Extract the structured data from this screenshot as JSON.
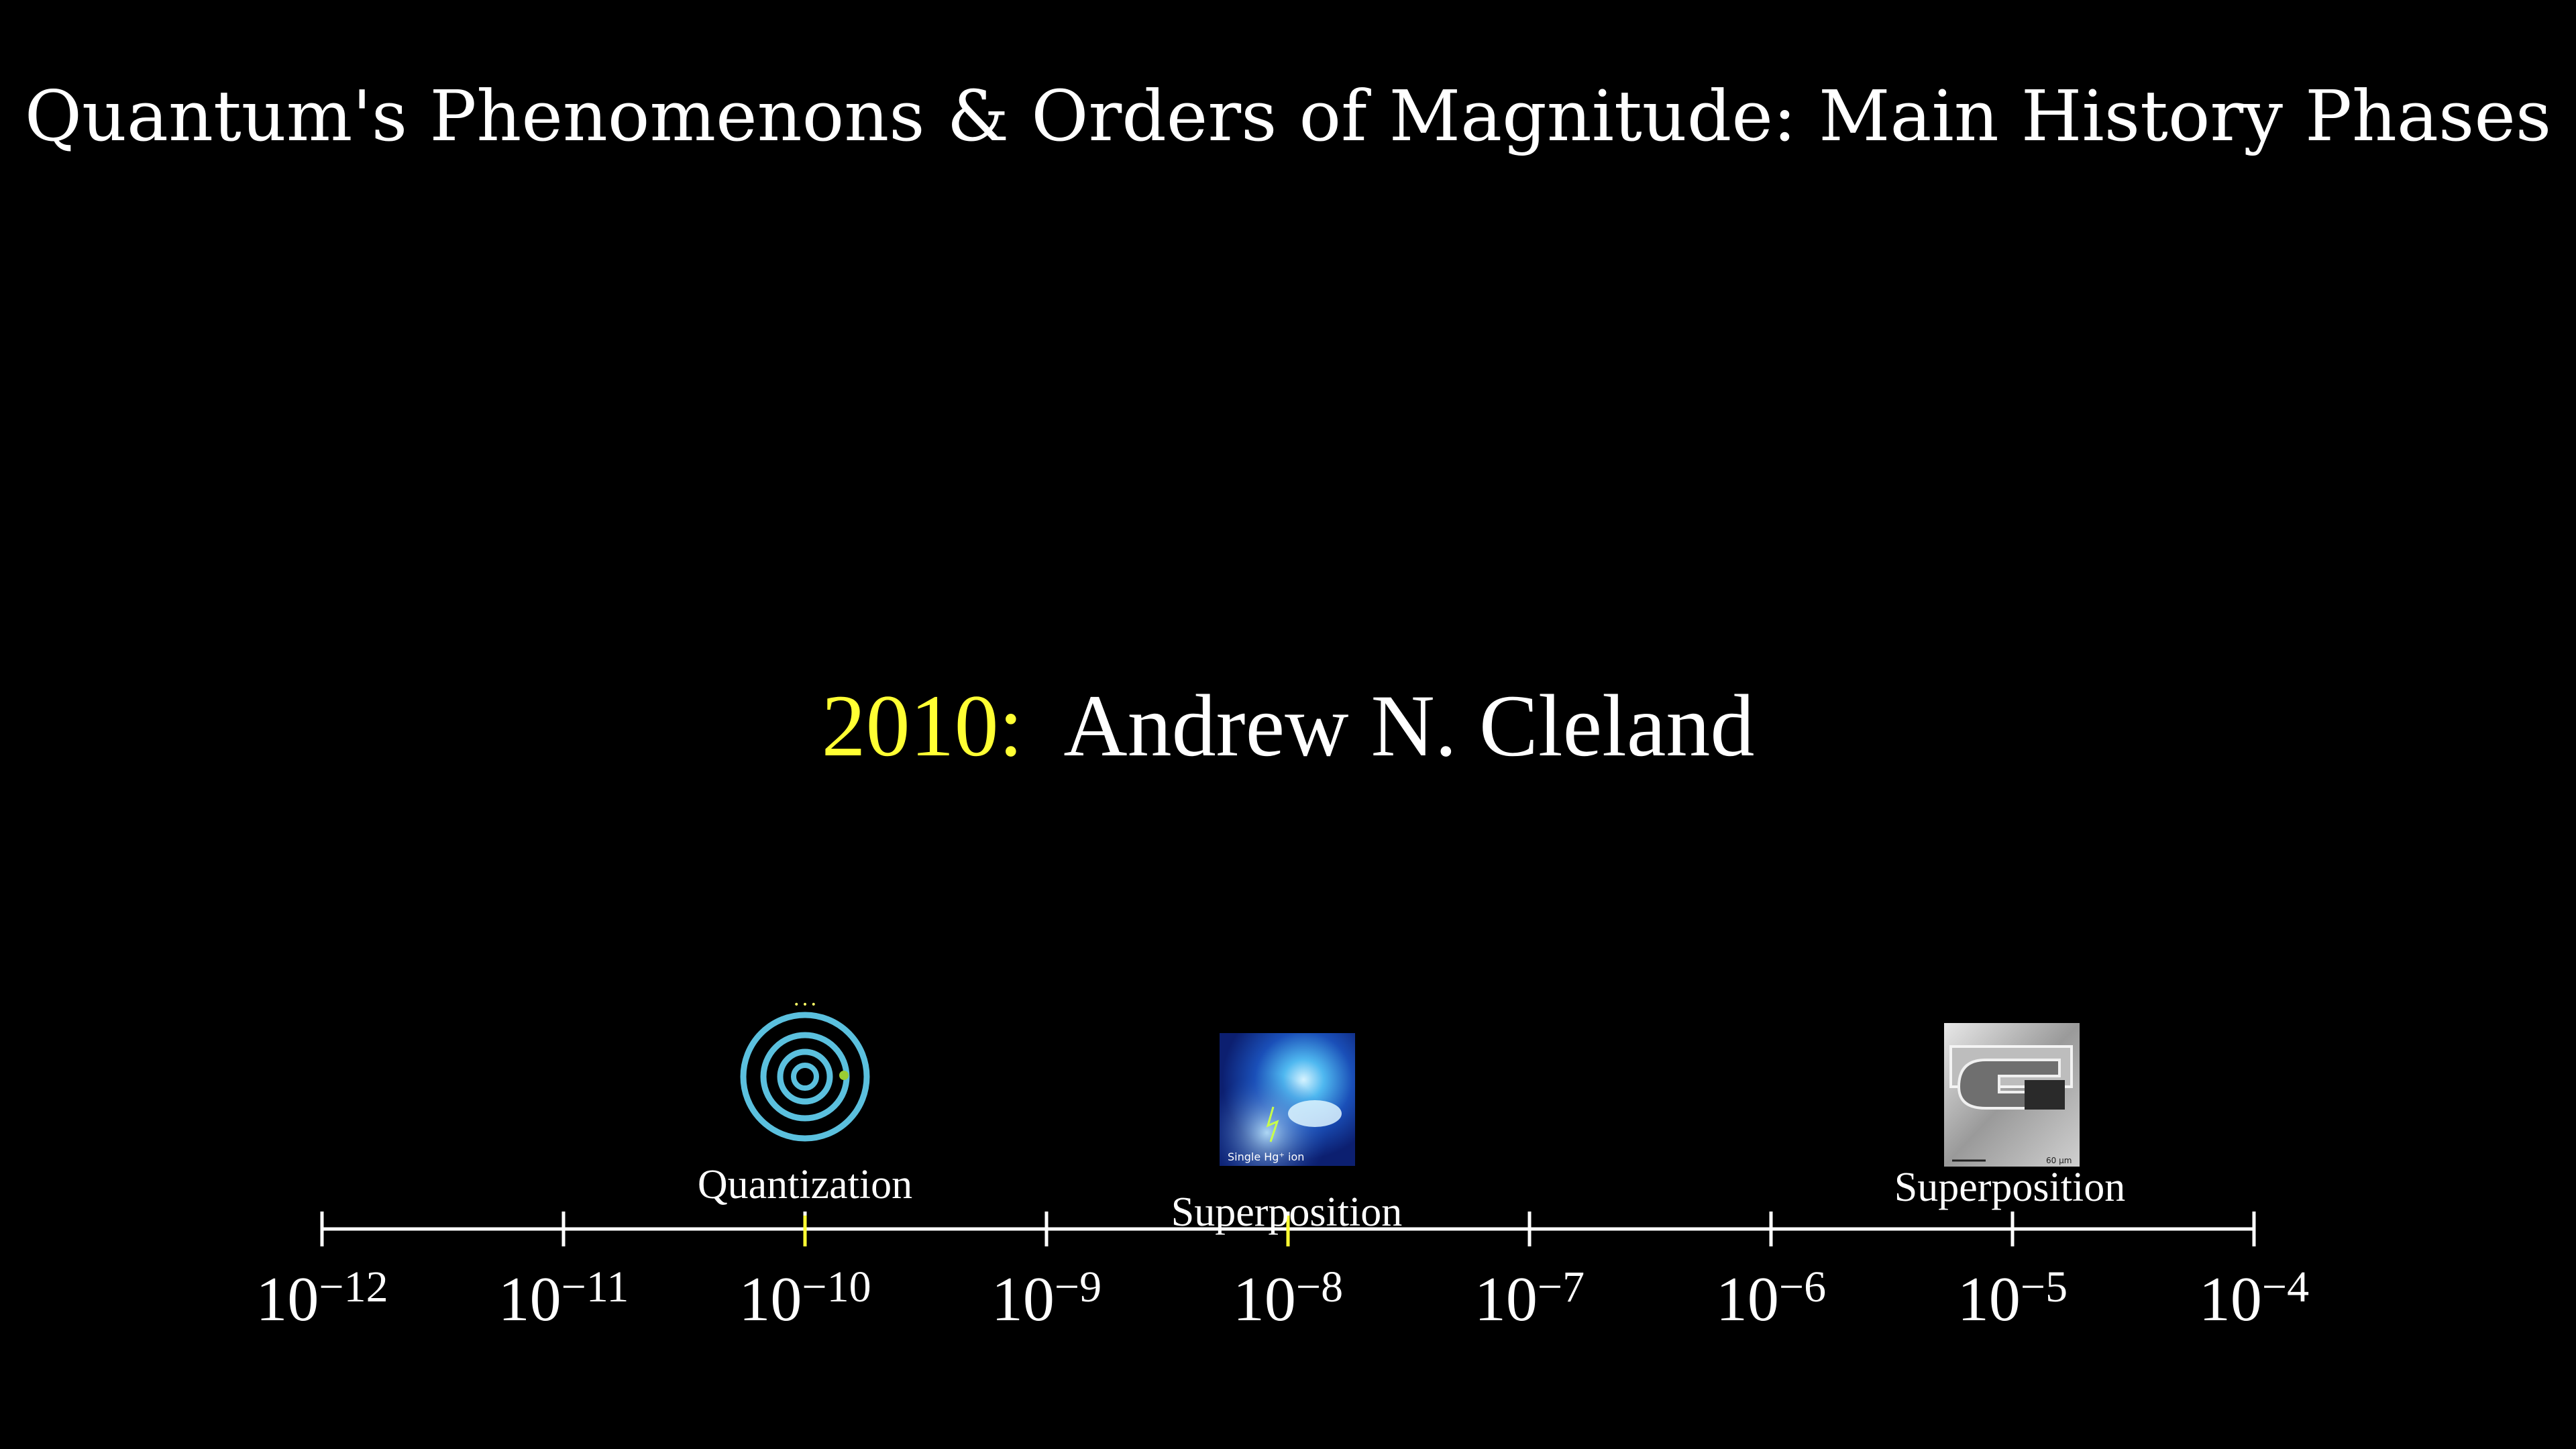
{
  "title": "Quantum's Phenomenons & Orders of Magnitude: Main History Phases",
  "headline": {
    "year": "2010:",
    "person": "Andrew N. Cleland"
  },
  "colors": {
    "background": "#000000",
    "axis": "#ffffff",
    "accent": "#ffff33",
    "orbit": "#5bc0de"
  },
  "axis": {
    "base": "10",
    "exponents": [
      "−12",
      "−11",
      "−10",
      "−9",
      "−8",
      "−7",
      "−6",
      "−5",
      "−4"
    ],
    "highlighted_ticks": [
      "−10",
      "−8"
    ]
  },
  "markers": [
    {
      "label": "Quantization",
      "exponent": -10,
      "icon": "atom-orbits-icon"
    },
    {
      "label": "Superposition",
      "exponent": -8,
      "icon": "single-ion-image",
      "image_caption": "Single Hg⁺ ion"
    },
    {
      "label": "Superposition",
      "exponent": -5,
      "icon": "mechanical-resonator-image",
      "image_caption": "60 µm"
    }
  ]
}
